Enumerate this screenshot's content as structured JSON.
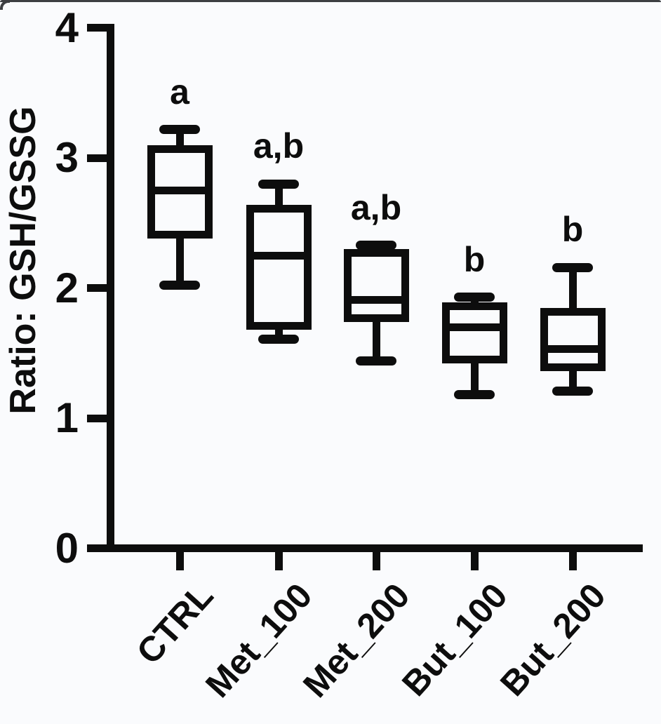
{
  "page": {
    "background_color": "#fafbfd",
    "edge_color": "#3d3f42",
    "ink_color": "#0d0d0d"
  },
  "chart_data": {
    "type": "box",
    "title": "",
    "xlabel": "",
    "ylabel": "Ratio: GSH/GSSG",
    "ylim": [
      0,
      4
    ],
    "yticks": [
      "0",
      "1",
      "2",
      "3",
      "4"
    ],
    "ytick_values": [
      0,
      1,
      2,
      3,
      4
    ],
    "grid": false,
    "legend_position": "none",
    "categories": [
      "CTRL",
      "Met_100",
      "Met_200",
      "But_100",
      "But_200"
    ],
    "groups": [
      {
        "label": "CTRL",
        "min": 2.02,
        "q1": 2.41,
        "median": 2.75,
        "q3": 3.07,
        "max": 3.22,
        "annotation": "a"
      },
      {
        "label": "Met_100",
        "min": 1.61,
        "q1": 1.71,
        "median": 2.25,
        "q3": 2.61,
        "max": 2.8,
        "annotation": "a,b"
      },
      {
        "label": "Met_200",
        "min": 1.44,
        "q1": 1.77,
        "median": 1.91,
        "q3": 2.27,
        "max": 2.33,
        "annotation": "a,b"
      },
      {
        "label": "But_100",
        "min": 1.18,
        "q1": 1.45,
        "median": 1.7,
        "q3": 1.86,
        "max": 1.93,
        "annotation": "b"
      },
      {
        "label": "But_200",
        "min": 1.21,
        "q1": 1.39,
        "median": 1.53,
        "q3": 1.82,
        "max": 2.16,
        "annotation": "b"
      }
    ]
  }
}
